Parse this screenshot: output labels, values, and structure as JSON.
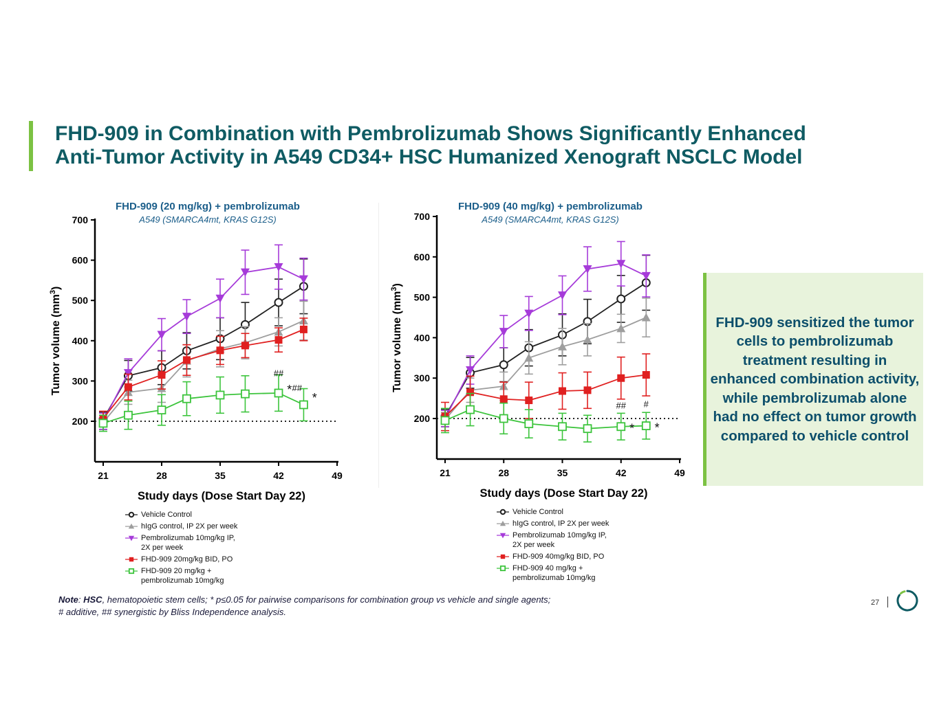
{
  "title": {
    "line1": "FHD-909 in Combination with Pembrolizumab Shows Significantly Enhanced",
    "line2": "Anti-Tumor Activity in A549 CD34+ HSC Humanized Xenograft NSCLC Model"
  },
  "colors": {
    "brand_green": "#7cc243",
    "title_teal": "#0f5b63",
    "vehicle": "#222222",
    "higg": "#9e9e9e",
    "pembro": "#a63bd9",
    "fhd": "#e02020",
    "combo": "#3cc43c"
  },
  "chart_data": [
    {
      "type": "line",
      "title": "FHD-909 (20 mg/kg) + pembrolizumab",
      "subtitle": "A549 (SMARCA4mt, KRAS G12S)",
      "xlabel": "Study days (Dose Start Day 22)",
      "ylabel": "Tumor volume (mm",
      "ylabel_sup": "3",
      "ylabel_close": ")",
      "xlim": [
        21,
        49
      ],
      "ylim": [
        110,
        700
      ],
      "xticks": [
        21,
        28,
        35,
        42,
        49
      ],
      "yticks": [
        200,
        300,
        400,
        500,
        600,
        700
      ],
      "reference_line": 200,
      "x": [
        21,
        24,
        28,
        31,
        35,
        38,
        42,
        45
      ],
      "series": [
        {
          "name": "Vehicle Control",
          "key": "vehicle",
          "marker": "circle-open",
          "values": [
            205,
            313,
            333,
            375,
            405,
            440,
            495,
            535
          ],
          "errors": [
            18,
            38,
            42,
            45,
            52,
            55,
            58,
            68
          ]
        },
        {
          "name": "hIgG control, IP 2X per week",
          "key": "higg",
          "marker": "triangle-up",
          "values": [
            197,
            272,
            282,
            350,
            380,
            395,
            422,
            450
          ],
          "errors": [
            18,
            30,
            35,
            40,
            45,
            40,
            35,
            48
          ]
        },
        {
          "name": "Pembrolizumab 10mg/kg IP, 2X per week",
          "key": "pembro",
          "marker": "triangle-down",
          "values": [
            200,
            320,
            415,
            460,
            505,
            570,
            583,
            553
          ],
          "errors": [
            20,
            35,
            40,
            42,
            48,
            55,
            55,
            52
          ]
        },
        {
          "name": "FHD-909 20mg/kg BID, PO",
          "key": "fhd",
          "marker": "square",
          "values": [
            207,
            285,
            315,
            352,
            376,
            388,
            402,
            428
          ],
          "errors": [
            18,
            32,
            35,
            38,
            35,
            30,
            30,
            28
          ]
        },
        {
          "name": "FHD-909 20 mg/kg + pembrolizumab 10mg/kg",
          "key": "combo",
          "marker": "square-open",
          "values": [
            195,
            215,
            228,
            256,
            265,
            268,
            270,
            241
          ],
          "errors": [
            20,
            35,
            38,
            42,
            45,
            45,
            45,
            40
          ]
        }
      ],
      "annotations": [
        {
          "x": 42,
          "y": 312,
          "text": "##"
        },
        {
          "x": 44.2,
          "y": 275,
          "text": "##"
        },
        {
          "x": 43.3,
          "y": 268,
          "text": "*"
        },
        {
          "x": 46.3,
          "y": 248,
          "text": "*"
        }
      ],
      "legend": [
        {
          "key": "vehicle",
          "marker": "circle-open",
          "lines": [
            "Vehicle Control"
          ]
        },
        {
          "key": "higg",
          "marker": "triangle-up",
          "lines": [
            "hIgG control, IP 2X per week"
          ]
        },
        {
          "key": "pembro",
          "marker": "triangle-down",
          "lines": [
            "Pembrolizumab 10mg/kg IP,",
            "2X per week"
          ]
        },
        {
          "key": "fhd",
          "marker": "square",
          "lines": [
            "FHD-909 20mg/kg BID, PO"
          ]
        },
        {
          "key": "combo",
          "marker": "square-open",
          "lines": [
            "FHD-909 20 mg/kg +",
            "pembrolizumab 10mg/kg"
          ]
        }
      ]
    },
    {
      "type": "line",
      "title": "FHD-909 (40 mg/kg) + pembrolizumab",
      "subtitle": "A549 (SMARCA4mt, KRAS G12S)",
      "xlabel": "Study days (Dose Start Day 22)",
      "ylabel": "Tumor volume (mm",
      "ylabel_sup": "3",
      "ylabel_close": ")",
      "xlim": [
        21,
        49
      ],
      "ylim": [
        110,
        700
      ],
      "xticks": [
        21,
        28,
        35,
        42,
        49
      ],
      "yticks": [
        200,
        300,
        400,
        500,
        600,
        700
      ],
      "reference_line": 200,
      "x": [
        21,
        24,
        28,
        31,
        35,
        38,
        42,
        45
      ],
      "series": [
        {
          "name": "Vehicle Control",
          "key": "vehicle",
          "marker": "circle-open",
          "values": [
            205,
            313,
            333,
            375,
            407,
            440,
            496,
            536
          ],
          "errors": [
            18,
            38,
            42,
            45,
            52,
            55,
            58,
            68
          ]
        },
        {
          "name": "hIgG control, IP 2X per week",
          "key": "higg",
          "marker": "triangle-up",
          "values": [
            197,
            270,
            280,
            350,
            378,
            395,
            423,
            450
          ],
          "errors": [
            18,
            30,
            35,
            40,
            45,
            40,
            35,
            48
          ]
        },
        {
          "name": "Pembrolizumab 10mg/kg IP, 2X per week",
          "key": "pembro",
          "marker": "triangle-down",
          "values": [
            200,
            320,
            415,
            460,
            505,
            570,
            583,
            553
          ],
          "errors": [
            20,
            35,
            40,
            42,
            48,
            55,
            55,
            52
          ]
        },
        {
          "name": "FHD-909 40mg/kg BID, PO",
          "key": "fhd",
          "marker": "square",
          "values": [
            205,
            265,
            248,
            245,
            268,
            270,
            300,
            308
          ],
          "errors": [
            35,
            40,
            42,
            45,
            45,
            45,
            52,
            52
          ]
        },
        {
          "name": "FHD-909 40 mg/kg + pembrolizumab 10mg/kg",
          "key": "combo",
          "marker": "square-open",
          "values": [
            195,
            222,
            200,
            187,
            180,
            175,
            180,
            182
          ],
          "errors": [
            30,
            40,
            38,
            35,
            33,
            33,
            33,
            33
          ]
        }
      ],
      "annotations": [
        {
          "x": 42,
          "y": 225,
          "text": "##"
        },
        {
          "x": 45,
          "y": 228,
          "text": "#"
        },
        {
          "x": 43.3,
          "y": 165,
          "text": "*"
        },
        {
          "x": 46.3,
          "y": 167,
          "text": "*"
        }
      ],
      "legend": [
        {
          "key": "vehicle",
          "marker": "circle-open",
          "lines": [
            "Vehicle Control"
          ]
        },
        {
          "key": "higg",
          "marker": "triangle-up",
          "lines": [
            "hIgG control, IP 2X per week"
          ]
        },
        {
          "key": "pembro",
          "marker": "triangle-down",
          "lines": [
            "Pembrolizumab 10mg/kg IP,",
            "2X per week"
          ]
        },
        {
          "key": "fhd",
          "marker": "square",
          "lines": [
            "FHD-909 40mg/kg BID, PO"
          ]
        },
        {
          "key": "combo",
          "marker": "square-open",
          "lines": [
            "FHD-909 40 mg/kg +",
            "pembrolizumab 10mg/kg"
          ]
        }
      ]
    }
  ],
  "callout": {
    "text": "FHD-909 sensitized the tumor cells to pembrolizumab treatment resulting in enhanced combination activity, while pembrolizumab alone had no effect on tumor growth compared to vehicle control"
  },
  "note": {
    "label": "Note",
    "colon": ": ",
    "hsc": "HSC",
    "line1_rest": ", hematopoietic stem cells; * p≤0.05 for pairwise comparisons for combination group vs vehicle and single agents;",
    "line2": "# additive, ## synergistic by Bliss Independence analysis."
  },
  "footer": {
    "page_number": "27"
  }
}
